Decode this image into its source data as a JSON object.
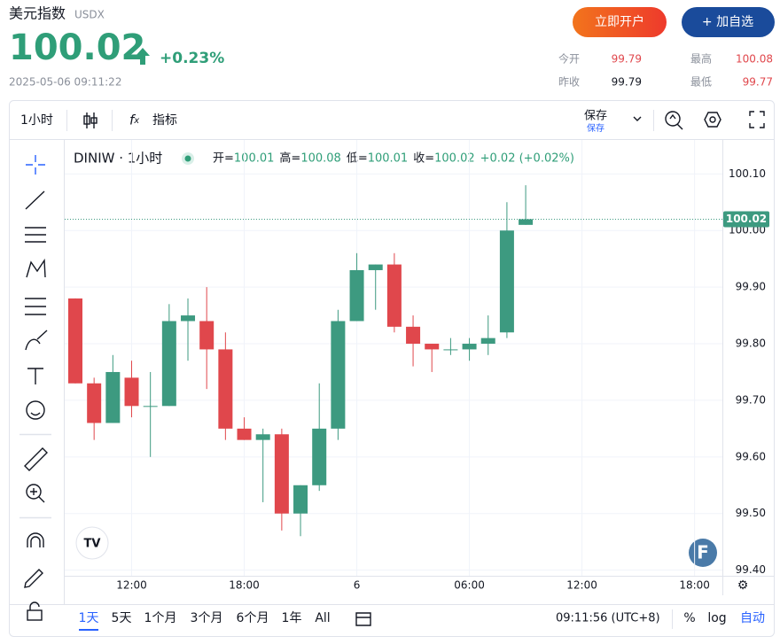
{
  "header": {
    "title": "美元指数",
    "symbol": "USDX",
    "price": 100.02,
    "change": "+0.23%",
    "datetime": "2025-05-06 09:11:22",
    "buttons": [
      "立即开户",
      "+ 加自选"
    ],
    "stats": [
      {
        "label": "今开",
        "value": 99.79
      },
      {
        "label": "最高",
        "value": 100.08
      },
      {
        "label": "昨收",
        "value": 99.79
      },
      {
        "label": "最低",
        "value": 99.77
      }
    ]
  },
  "toolbar": {
    "interval": "1小时",
    "indicators": "指标",
    "save": "保存",
    "save_sub": "保存"
  },
  "footer": {
    "ranges": [
      "1天",
      "5天",
      "1个月",
      "3个月",
      "6个月",
      "1年",
      "All"
    ],
    "time": "09:11:56 (UTC+8)",
    "percent": "%",
    "log": "log",
    "auto": "自动"
  },
  "chart_data": {
    "type": "candlestick",
    "title": "DINIW · 1小时",
    "legend": [
      {
        "label": "开=",
        "value": 100.01
      },
      {
        "label": "高=",
        "value": 100.08
      },
      {
        "label": "低=",
        "value": 100.01
      },
      {
        "label": "收=",
        "value": 100.02
      }
    ],
    "legend_change": "+0.02 (+0.02%)",
    "last_price": 100.02,
    "up_color": "#3d9a80",
    "down_color": "#e0474c",
    "grid": true,
    "categories": [
      null,
      null,
      null,
      "12:00",
      null,
      null,
      null,
      null,
      null,
      "18:00",
      null,
      null,
      null,
      null,
      null,
      "6",
      null,
      null,
      null,
      null,
      null,
      "06:00",
      null,
      null,
      null,
      null,
      null,
      "12:00",
      null,
      null,
      null,
      null,
      null,
      "18:00",
      null
    ],
    "open": [
      99.88,
      99.73,
      99.66,
      99.74,
      99.69,
      99.69,
      99.84,
      99.84,
      99.79,
      99.65,
      99.63,
      99.64,
      99.5,
      99.55,
      99.65,
      99.84,
      99.93,
      99.94,
      99.83,
      99.8,
      99.79,
      99.79,
      99.8,
      99.82,
      100.01,
      null,
      null,
      null,
      null,
      null,
      null,
      null,
      null,
      null,
      null
    ],
    "high": [
      99.88,
      99.74,
      99.78,
      99.77,
      99.75,
      99.87,
      99.88,
      99.9,
      99.82,
      99.67,
      99.65,
      99.65,
      99.55,
      99.73,
      99.86,
      99.96,
      99.94,
      99.96,
      99.85,
      99.8,
      99.81,
      99.81,
      99.85,
      100.05,
      100.08,
      null,
      null,
      null,
      null,
      null,
      null,
      null,
      null,
      null,
      null
    ],
    "low": [
      99.73,
      99.63,
      99.66,
      99.67,
      99.6,
      99.69,
      99.77,
      99.72,
      99.63,
      99.63,
      99.52,
      99.47,
      99.46,
      99.54,
      99.63,
      99.84,
      99.86,
      99.82,
      99.76,
      99.75,
      99.78,
      99.77,
      99.78,
      99.81,
      100.01,
      null,
      null,
      null,
      null,
      null,
      null,
      null,
      null,
      null,
      null
    ],
    "close": [
      99.73,
      99.66,
      99.75,
      99.69,
      99.69,
      99.84,
      99.85,
      99.79,
      99.65,
      99.63,
      99.64,
      99.5,
      99.55,
      99.65,
      99.84,
      99.93,
      99.94,
      99.83,
      99.8,
      99.79,
      99.79,
      99.8,
      99.81,
      100.0,
      100.02,
      null,
      null,
      null,
      null,
      null,
      null,
      null,
      null,
      null,
      null
    ],
    "ylim": [
      99.39,
      100.16
    ],
    "yticks": [
      {
        "value": 100.1,
        "label": "100.10"
      },
      {
        "value": 100.0,
        "label": "100.00"
      },
      {
        "value": 99.9,
        "label": "99.90"
      },
      {
        "value": 99.8,
        "label": "99.80"
      },
      {
        "value": 99.7,
        "label": "99.70"
      },
      {
        "value": 99.6,
        "label": "99.60"
      },
      {
        "value": 99.5,
        "label": "99.50"
      },
      {
        "value": 99.4,
        "label": "99.40"
      }
    ]
  }
}
